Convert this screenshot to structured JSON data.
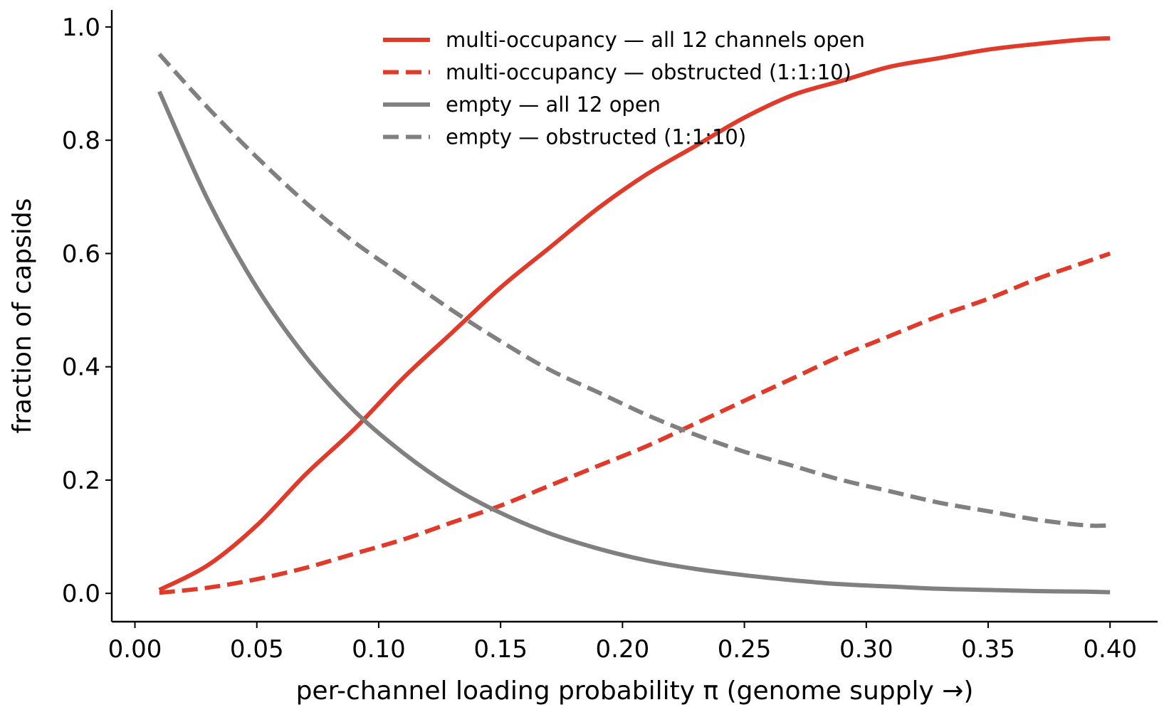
{
  "chart_data": {
    "type": "line",
    "title": "",
    "xlabel": "per-channel loading probability π  (genome supply →)",
    "ylabel": "fraction of capsids",
    "xlim": [
      -0.0095,
      0.4195
    ],
    "ylim": [
      -0.05,
      1.03
    ],
    "xticks": [
      0.0,
      0.05,
      0.1,
      0.15,
      0.2,
      0.25,
      0.3,
      0.35,
      0.4
    ],
    "xtick_labels": [
      "0.00",
      "0.05",
      "0.10",
      "0.15",
      "0.20",
      "0.25",
      "0.30",
      "0.35",
      "0.40"
    ],
    "yticks": [
      0.0,
      0.2,
      0.4,
      0.6,
      0.8,
      1.0
    ],
    "ytick_labels": [
      "0.0",
      "0.2",
      "0.4",
      "0.6",
      "0.8",
      "1.0"
    ],
    "grid": false,
    "legend_position": "top-center",
    "x": [
      0.01,
      0.03,
      0.05,
      0.07,
      0.09,
      0.11,
      0.13,
      0.15,
      0.17,
      0.19,
      0.21,
      0.23,
      0.25,
      0.27,
      0.29,
      0.31,
      0.33,
      0.35,
      0.37,
      0.39,
      0.4
    ],
    "series": [
      {
        "name": "multi-occupancy — all 12 channels open",
        "color": "#e03a2a",
        "dash": "solid",
        "values": [
          0.006,
          0.05,
          0.12,
          0.21,
          0.29,
          0.38,
          0.46,
          0.54,
          0.61,
          0.68,
          0.74,
          0.79,
          0.84,
          0.88,
          0.905,
          0.93,
          0.945,
          0.96,
          0.97,
          0.978,
          0.98
        ]
      },
      {
        "name": "multi-occupancy — obstructed (1:1:10)",
        "color": "#e03a2a",
        "dash": "dashed",
        "values": [
          0.001,
          0.01,
          0.025,
          0.045,
          0.07,
          0.095,
          0.125,
          0.155,
          0.19,
          0.225,
          0.26,
          0.3,
          0.34,
          0.38,
          0.42,
          0.455,
          0.49,
          0.52,
          0.555,
          0.585,
          0.6
        ]
      },
      {
        "name": "empty — all 12 open",
        "color": "#808080",
        "dash": "solid",
        "values": [
          0.886,
          0.694,
          0.54,
          0.418,
          0.322,
          0.248,
          0.188,
          0.142,
          0.106,
          0.079,
          0.058,
          0.043,
          0.032,
          0.023,
          0.016,
          0.012,
          0.008,
          0.006,
          0.004,
          0.003,
          0.002
        ]
      },
      {
        "name": "empty — obstructed (1:1:10)",
        "color": "#808080",
        "dash": "dashed",
        "values": [
          0.952,
          0.857,
          0.77,
          0.69,
          0.62,
          0.56,
          0.5,
          0.445,
          0.395,
          0.355,
          0.315,
          0.28,
          0.25,
          0.225,
          0.2,
          0.18,
          0.16,
          0.145,
          0.13,
          0.12,
          0.12
        ]
      }
    ]
  }
}
